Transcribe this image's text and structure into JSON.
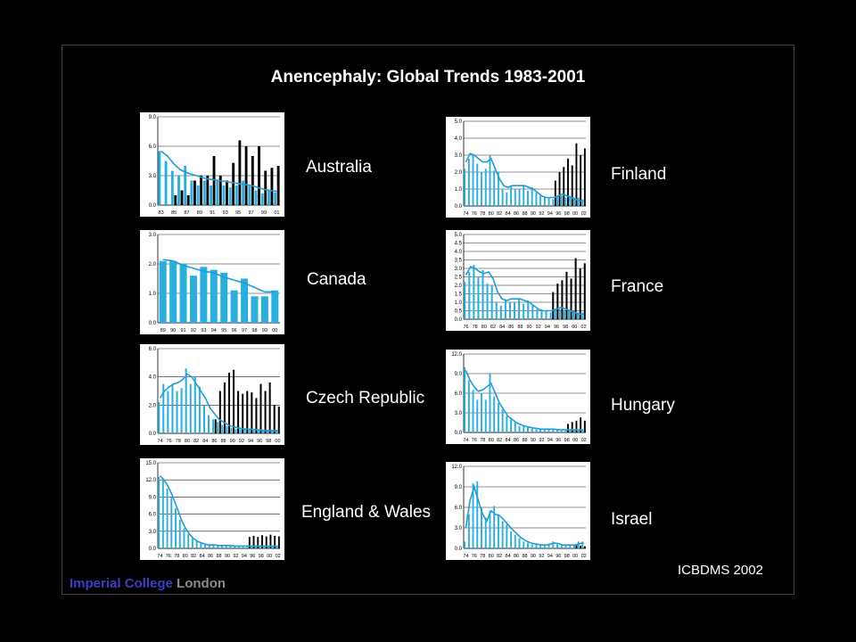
{
  "title": "Anencephaly:  Global Trends 1983-2001",
  "credit": "ICBDMS 2002",
  "logo": {
    "part1": "Imperial College ",
    "part2": "London"
  },
  "colors": {
    "light": "#29aee0",
    "dark": "#000000",
    "line": "#1e9ed6",
    "grid": "#222222"
  },
  "chart_data": [
    {
      "id": "australia",
      "type": "bar",
      "name": "Australia",
      "x": [
        "83",
        "84",
        "85",
        "86",
        "87",
        "88",
        "89",
        "90",
        "91",
        "92",
        "93",
        "94",
        "95",
        "96",
        "97",
        "98",
        "99",
        "00",
        "01"
      ],
      "xticks": [
        "83",
        "85",
        "87",
        "89",
        "91",
        "93",
        "95",
        "97",
        "99",
        "01"
      ],
      "ylim": [
        0,
        9
      ],
      "yticks": [
        "0.0",
        "3.0",
        "6.0",
        "9.0"
      ],
      "series": [
        {
          "values": [
            5.5,
            4.5,
            3.5,
            3.0,
            4.0,
            2.5,
            2.0,
            2.5,
            2.0,
            2.5,
            2.0,
            1.8,
            2.0,
            2.5,
            2.0,
            1.5,
            1.2,
            1.5,
            1.3
          ]
        },
        {
          "values": [
            0,
            0,
            1.0,
            1.5,
            1.0,
            2.5,
            3.0,
            3.0,
            5.0,
            3.0,
            2.5,
            4.3,
            6.6,
            6.0,
            5.0,
            6.0,
            3.5,
            3.8,
            4.0
          ]
        },
        {
          "values": [
            5.5,
            5.0,
            4.2,
            3.6,
            3.3,
            3.1,
            2.9,
            2.7,
            2.6,
            2.5,
            2.4,
            2.3,
            2.2,
            2.1,
            2.0,
            1.8,
            1.6,
            1.5,
            1.4
          ]
        }
      ]
    },
    {
      "id": "canada",
      "type": "bar",
      "name": "Canada",
      "x": [
        "89",
        "90",
        "91",
        "92",
        "93",
        "94",
        "95",
        "96",
        "97",
        "98",
        "99",
        "00"
      ],
      "xticks": [
        "89",
        "90",
        "91",
        "92",
        "93",
        "94",
        "95",
        "96",
        "97",
        "98",
        "99",
        "00"
      ],
      "ylim": [
        0,
        3
      ],
      "yticks": [
        "0.0",
        "1.0",
        "2.0",
        "3.0"
      ],
      "series": [
        {
          "values": [
            2.1,
            2.1,
            2.0,
            1.6,
            1.9,
            1.8,
            1.7,
            1.1,
            1.5,
            0.9,
            0.9,
            1.1
          ]
        },
        {
          "values": [
            0,
            0,
            0,
            0,
            0,
            0,
            0,
            0,
            0,
            0,
            0,
            0
          ]
        },
        {
          "values": [
            2.15,
            2.1,
            1.95,
            1.85,
            1.75,
            1.7,
            1.55,
            1.45,
            1.35,
            1.2,
            1.05,
            1.05
          ]
        }
      ]
    },
    {
      "id": "czech",
      "type": "bar",
      "name": "Czech Republic",
      "x": [
        "74",
        "75",
        "76",
        "77",
        "78",
        "79",
        "80",
        "81",
        "82",
        "83",
        "84",
        "85",
        "86",
        "87",
        "88",
        "89",
        "90",
        "91",
        "92",
        "93",
        "94",
        "95",
        "96",
        "97",
        "98",
        "99",
        "00"
      ],
      "xticks": [
        "74",
        "76",
        "78",
        "80",
        "82",
        "84",
        "86",
        "88",
        "90",
        "92",
        "94",
        "96",
        "98",
        "00"
      ],
      "ylim": [
        0,
        6
      ],
      "yticks": [
        "0.0",
        "2.0",
        "4.0",
        "6.0"
      ],
      "series": [
        {
          "values": [
            2.2,
            3.5,
            3.0,
            3.5,
            3.0,
            3.2,
            4.6,
            3.5,
            4.0,
            3.3,
            2.0,
            1.3,
            1.0,
            0.8,
            0.6,
            0.5,
            0.4,
            0.3,
            0.3,
            0.3,
            0.3,
            0.2,
            0.2,
            0.2,
            0.2,
            0.2,
            0.2
          ]
        },
        {
          "values": [
            0,
            0,
            0,
            0,
            0,
            0,
            0,
            0,
            0,
            0,
            0,
            0,
            1.0,
            3.0,
            3.6,
            4.3,
            4.5,
            3.0,
            2.8,
            3.0,
            2.9,
            2.5,
            3.5,
            3.0,
            3.6,
            2.0,
            1.9
          ]
        },
        {
          "values": [
            2.5,
            3.0,
            3.3,
            3.5,
            3.6,
            3.8,
            4.2,
            4.0,
            3.5,
            3.0,
            2.5,
            1.8,
            1.4,
            1.0,
            0.8,
            0.6,
            0.5,
            0.4,
            0.35,
            0.3,
            0.3,
            0.25,
            0.25,
            0.2,
            0.2,
            0.2,
            0.2
          ]
        }
      ]
    },
    {
      "id": "england",
      "type": "bar",
      "name": "England & Wales",
      "x": [
        "74",
        "75",
        "76",
        "77",
        "78",
        "79",
        "80",
        "81",
        "82",
        "83",
        "84",
        "85",
        "86",
        "87",
        "88",
        "89",
        "90",
        "91",
        "92",
        "93",
        "94",
        "95",
        "96",
        "97",
        "98",
        "99",
        "00",
        "01",
        "02"
      ],
      "xticks": [
        "74",
        "76",
        "78",
        "80",
        "82",
        "84",
        "86",
        "88",
        "90",
        "92",
        "94",
        "96",
        "98",
        "00",
        "02"
      ],
      "ylim": [
        0,
        15
      ],
      "yticks": [
        "0.0",
        "3.0",
        "6.0",
        "9.0",
        "12.0",
        "15.0"
      ],
      "series": [
        {
          "values": [
            12.5,
            12.0,
            10.5,
            9.0,
            7.0,
            5.0,
            3.5,
            2.5,
            1.8,
            1.3,
            1.0,
            0.8,
            0.7,
            0.6,
            0.5,
            0.5,
            0.5,
            0.4,
            0.4,
            0.4,
            0.4,
            0.3,
            0.3,
            0.3,
            0.3,
            0.3,
            0.3,
            0.3,
            0.3
          ]
        },
        {
          "values": [
            0,
            0,
            0,
            0,
            0,
            0,
            0,
            0,
            0,
            0,
            0,
            0,
            0,
            0,
            0,
            0,
            0,
            0,
            0,
            0,
            0,
            2.0,
            2.2,
            2.0,
            2.3,
            2.1,
            2.4,
            2.2,
            2.1
          ]
        },
        {
          "values": [
            12.7,
            12.0,
            10.8,
            9.2,
            7.2,
            5.2,
            3.6,
            2.5,
            1.7,
            1.2,
            0.9,
            0.7,
            0.6,
            0.6,
            0.5,
            0.5,
            0.5,
            0.45,
            0.4,
            0.4,
            0.4,
            0.4,
            0.4,
            0.4,
            0.4,
            0.4,
            0.4,
            0.4,
            0.4
          ]
        }
      ]
    },
    {
      "id": "finland",
      "type": "bar",
      "name": "Finland",
      "x": [
        "74",
        "75",
        "76",
        "77",
        "78",
        "79",
        "80",
        "81",
        "82",
        "83",
        "84",
        "85",
        "86",
        "87",
        "88",
        "89",
        "90",
        "91",
        "92",
        "93",
        "94",
        "95",
        "96",
        "97",
        "98",
        "99",
        "00",
        "01",
        "02"
      ],
      "xticks": [
        "74",
        "76",
        "78",
        "80",
        "82",
        "84",
        "86",
        "88",
        "90",
        "92",
        "94",
        "96",
        "98",
        "00",
        "02"
      ],
      "ylim": [
        0,
        5
      ],
      "yticks": [
        "0.0",
        "1.0",
        "2.0",
        "3.0",
        "4.0",
        "5.0"
      ],
      "series": [
        {
          "values": [
            2.2,
            2.8,
            3.0,
            2.5,
            2.0,
            2.2,
            3.0,
            2.1,
            2.0,
            1.0,
            0.8,
            1.2,
            1.0,
            1.0,
            1.2,
            0.9,
            1.1,
            0.8,
            0.6,
            0.5,
            0.5,
            0.4,
            0.6,
            0.6,
            0.5,
            0.6,
            0.5,
            0.5,
            0.4
          ]
        },
        {
          "values": [
            0,
            0,
            0,
            0,
            0,
            0,
            0,
            0,
            0,
            0,
            0,
            0,
            0,
            0,
            0,
            0,
            0,
            0,
            0,
            0,
            0,
            1.5,
            2.0,
            2.3,
            2.8,
            2.4,
            3.7,
            3.0,
            3.4
          ]
        },
        {
          "values": [
            2.6,
            3.1,
            3.0,
            2.8,
            2.6,
            2.6,
            2.8,
            2.2,
            1.6,
            1.2,
            1.1,
            1.2,
            1.2,
            1.2,
            1.2,
            1.1,
            1.0,
            0.8,
            0.6,
            0.5,
            0.5,
            0.5,
            0.6,
            0.7,
            0.6,
            0.5,
            0.4,
            0.3,
            0.3
          ]
        }
      ]
    },
    {
      "id": "france",
      "type": "bar",
      "name": "France",
      "x": [
        "76",
        "77",
        "78",
        "79",
        "80",
        "81",
        "82",
        "83",
        "84",
        "85",
        "86",
        "87",
        "88",
        "89",
        "90",
        "91",
        "92",
        "93",
        "94",
        "95",
        "96",
        "97",
        "98",
        "99",
        "00",
        "01",
        "02"
      ],
      "xticks": [
        "76",
        "78",
        "80",
        "82",
        "84",
        "86",
        "88",
        "90",
        "92",
        "94",
        "96",
        "98",
        "00",
        "02"
      ],
      "ylim": [
        0,
        5
      ],
      "yticks": [
        "0.0",
        "0.5",
        "1.0",
        "1.5",
        "2.0",
        "2.5",
        "3.0",
        "3.5",
        "4.0",
        "4.5",
        "5.0"
      ],
      "series": [
        {
          "values": [
            2.2,
            2.8,
            3.2,
            2.5,
            2.9,
            2.1,
            2.0,
            1.0,
            0.8,
            1.1,
            1.0,
            1.0,
            1.2,
            0.9,
            1.1,
            0.8,
            0.6,
            0.5,
            0.5,
            0.4,
            0.6,
            0.6,
            0.5,
            0.5,
            0.5,
            0.4,
            0.4
          ]
        },
        {
          "values": [
            0,
            0,
            0,
            0,
            0,
            0,
            0,
            0,
            0,
            0,
            0,
            0,
            0,
            0,
            0,
            0,
            0,
            0,
            0,
            1.6,
            2.1,
            2.3,
            2.8,
            2.4,
            3.6,
            3.0,
            3.3
          ]
        },
        {
          "values": [
            2.6,
            3.1,
            3.0,
            2.8,
            2.7,
            2.8,
            2.4,
            1.6,
            1.2,
            1.1,
            1.2,
            1.2,
            1.2,
            1.1,
            1.0,
            0.8,
            0.6,
            0.5,
            0.5,
            0.5,
            0.6,
            0.7,
            0.6,
            0.5,
            0.4,
            0.3,
            0.3
          ]
        }
      ]
    },
    {
      "id": "hungary",
      "type": "bar",
      "name": "Hungary",
      "x": [
        "74",
        "75",
        "76",
        "77",
        "78",
        "79",
        "80",
        "81",
        "82",
        "83",
        "84",
        "85",
        "86",
        "87",
        "88",
        "89",
        "90",
        "91",
        "92",
        "93",
        "94",
        "95",
        "96",
        "97",
        "98",
        "99",
        "00",
        "01",
        "02"
      ],
      "xticks": [
        "74",
        "76",
        "78",
        "80",
        "82",
        "84",
        "86",
        "88",
        "90",
        "92",
        "94",
        "96",
        "98",
        "00",
        "02"
      ],
      "ylim": [
        0,
        12
      ],
      "yticks": [
        "0.0",
        "3.0",
        "6.0",
        "9.0",
        "12.0"
      ],
      "series": [
        {
          "values": [
            10.0,
            8.0,
            6.5,
            5.0,
            6.0,
            5.0,
            9.0,
            5.5,
            4.5,
            3.5,
            2.5,
            2.0,
            1.5,
            1.0,
            1.0,
            0.8,
            0.6,
            0.5,
            0.5,
            0.5,
            0.6,
            0.5,
            0.4,
            0.4,
            0.3,
            0.3,
            0.3,
            0.3,
            0.3
          ]
        },
        {
          "values": [
            0,
            0,
            0,
            0,
            0,
            0,
            0,
            0,
            0,
            0,
            0,
            0,
            0,
            0,
            0,
            0,
            0,
            0,
            0,
            0,
            0,
            0,
            0,
            0,
            1.3,
            1.6,
            1.8,
            2.3,
            1.8
          ]
        },
        {
          "values": [
            9.5,
            8.0,
            7.0,
            6.3,
            6.5,
            7.0,
            7.5,
            6.0,
            4.5,
            3.5,
            2.5,
            2.0,
            1.5,
            1.2,
            1.0,
            0.8,
            0.7,
            0.6,
            0.5,
            0.5,
            0.5,
            0.5,
            0.4,
            0.4,
            0.4,
            0.4,
            0.4,
            0.4,
            0.4
          ]
        }
      ]
    },
    {
      "id": "israel",
      "type": "bar",
      "name": "Israel",
      "x": [
        "74",
        "75",
        "76",
        "77",
        "78",
        "79",
        "80",
        "81",
        "82",
        "83",
        "84",
        "85",
        "86",
        "87",
        "88",
        "89",
        "90",
        "91",
        "92",
        "93",
        "94",
        "95",
        "96",
        "97",
        "98",
        "99",
        "00",
        "01",
        "02"
      ],
      "xticks": [
        "74",
        "76",
        "78",
        "80",
        "82",
        "84",
        "86",
        "88",
        "90",
        "92",
        "94",
        "96",
        "98",
        "00",
        "02"
      ],
      "ylim": [
        0,
        12
      ],
      "yticks": [
        "0.0",
        "3.0",
        "6.0",
        "9.0",
        "12.0"
      ],
      "series": [
        {
          "values": [
            1.0,
            5.0,
            9.5,
            9.8,
            6.0,
            4.5,
            5.5,
            6.2,
            5.0,
            4.0,
            3.5,
            2.5,
            2.0,
            1.5,
            1.0,
            0.8,
            0.6,
            0.5,
            0.4,
            0.5,
            0.6,
            1.0,
            0.6,
            0.5,
            0.5,
            0.4,
            0.4,
            1.0,
            1.0
          ]
        },
        {
          "values": [
            0,
            0,
            0,
            0,
            0,
            0,
            0,
            0,
            0,
            0,
            0,
            0,
            0,
            0,
            0,
            0,
            0,
            0,
            0,
            0,
            0,
            0,
            0,
            0,
            0,
            0,
            0.5,
            0.4,
            0.3
          ]
        },
        {
          "values": [
            3.0,
            7.0,
            9.0,
            7.0,
            5.0,
            4.0,
            5.5,
            5.0,
            4.8,
            4.2,
            3.5,
            2.8,
            2.2,
            1.6,
            1.2,
            0.9,
            0.7,
            0.6,
            0.5,
            0.5,
            0.6,
            0.8,
            0.7,
            0.5,
            0.5,
            0.5,
            0.5,
            0.7,
            0.8
          ]
        }
      ]
    }
  ]
}
